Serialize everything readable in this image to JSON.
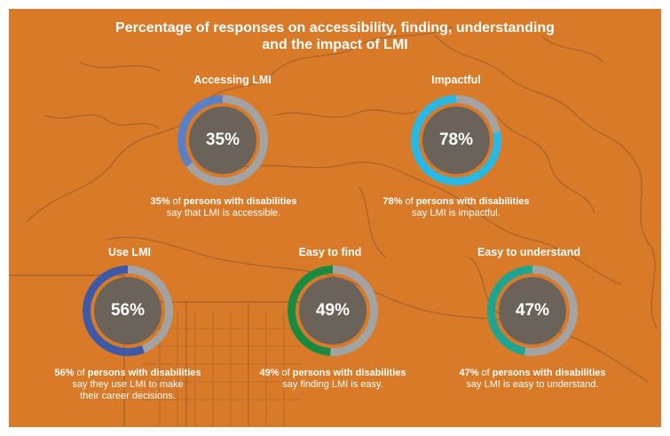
{
  "title_line1": "Percentage of responses on accessibility, finding, understanding",
  "title_line2": "and the impact of LMI",
  "colors": {
    "background": "#d97a29",
    "map_lines": "#9a5f2c",
    "ring_track": "#a3a3a3",
    "center_fill": "#6b635a"
  },
  "chart_data": [
    {
      "type": "pie",
      "label": "Accessing LMI",
      "value": 35,
      "value_label": "35%",
      "color": "#5b7fc4",
      "caption_pct": "35%",
      "caption_of": " of ",
      "caption_group": "persons with disabilities",
      "caption_line2": "say that LMI is accessible."
    },
    {
      "type": "pie",
      "label": "Impactful",
      "value": 78,
      "value_label": "78%",
      "color": "#29b7e3",
      "caption_pct": "78%",
      "caption_of": " of ",
      "caption_group": "persons with disabilities",
      "caption_line2": "say LMI is impactful."
    },
    {
      "type": "pie",
      "label": "Use LMI",
      "value": 56,
      "value_label": "56%",
      "color": "#3e5aa6",
      "caption_pct": "56%",
      "caption_of": " of ",
      "caption_group": "persons with disabilities",
      "caption_line2": "say they use LMI to make",
      "caption_line3": "their career decisions."
    },
    {
      "type": "pie",
      "label": "Easy to find",
      "value": 49,
      "value_label": "49%",
      "color": "#1b8a3e",
      "caption_pct": "49%",
      "caption_of": " of ",
      "caption_group": "persons with disabilities",
      "caption_line2": "say finding LMI is easy."
    },
    {
      "type": "pie",
      "label": "Easy to understand",
      "value": 47,
      "value_label": "47%",
      "color": "#1fa48f",
      "caption_pct": "47%",
      "caption_of": " of ",
      "caption_group": "persons with disabilities",
      "caption_line2": "say LMI is easy to understand."
    }
  ]
}
